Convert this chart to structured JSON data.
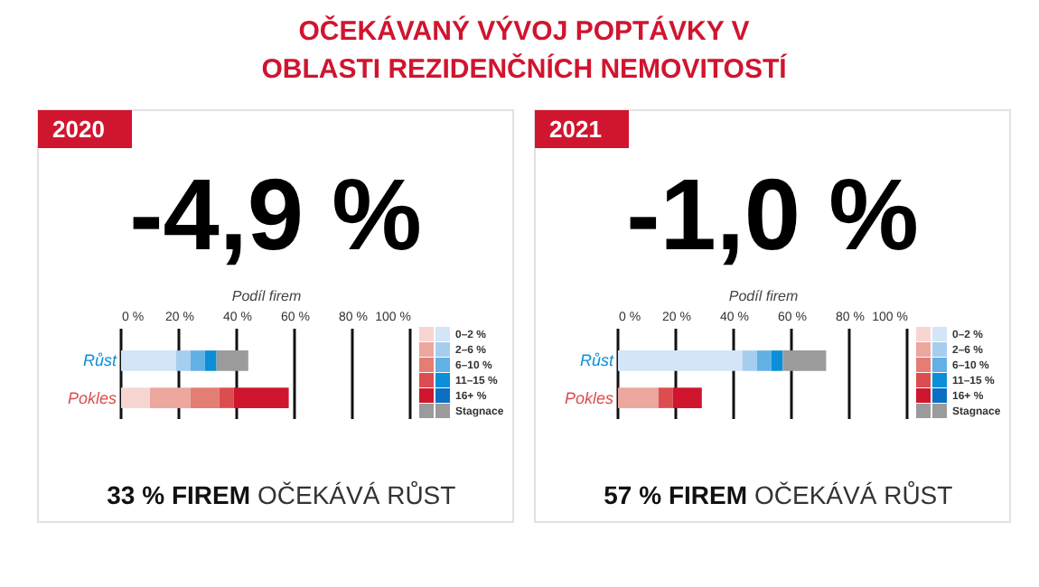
{
  "chart_data": [
    {
      "type": "bar",
      "orientation": "horizontal",
      "stacked": true,
      "title": "OČEKÁVANÝ VÝVOJ POPTÁVKY V OBLASTI REZIDENČNÍCH NEMOVITOSTÍ",
      "subtitle": "2020",
      "xlabel": "Podíl firem",
      "categories": [
        "Růst",
        "Pokles"
      ],
      "series": [
        {
          "name": "0–2 %",
          "colors": [
            "#d3e5f6",
            "#f7d6d2"
          ],
          "values": [
            19,
            10
          ]
        },
        {
          "name": "2–6 %",
          "colors": [
            "#a7cdee",
            "#eca79f"
          ],
          "values": [
            5,
            14
          ]
        },
        {
          "name": "6–10 %",
          "colors": [
            "#62b0e4",
            "#e47d73"
          ],
          "values": [
            5,
            10
          ]
        },
        {
          "name": "11–15 %",
          "colors": [
            "#0a8fd8",
            "#dc4d4f"
          ],
          "values": [
            4,
            5
          ]
        },
        {
          "name": "16+ %",
          "colors": [
            "#0b70c2",
            "#d0152f"
          ],
          "values": [
            null,
            19
          ]
        },
        {
          "name": "Stagnace",
          "colors": [
            "#9b9b9b",
            "#9b9b9b"
          ],
          "values": [
            11,
            null
          ]
        }
      ],
      "xlim": [
        0,
        100
      ],
      "xticks": [
        {
          "value": 0,
          "label": "0 %"
        },
        {
          "value": 20,
          "label": "20 %"
        },
        {
          "value": 40,
          "label": "40 %"
        },
        {
          "value": 60,
          "label": "60 %"
        },
        {
          "value": 80,
          "label": "80 %"
        },
        {
          "value": 100,
          "label": "100 %"
        }
      ],
      "grid": "x",
      "legend": "top right",
      "annotations": [
        "-4,9 %",
        "33 % FIREM",
        "OČEKÁVÁ RŮST"
      ]
    },
    {
      "type": "bar",
      "orientation": "horizontal",
      "stacked": true,
      "subtitle": "2021",
      "xlabel": "Podíl firem",
      "categories": [
        "Růst",
        "Pokles"
      ],
      "series": [
        {
          "name": "0–2 %",
          "colors": [
            "#d3e5f6",
            "#f7d6d2"
          ],
          "values": [
            43,
            null
          ]
        },
        {
          "name": "2–6 %",
          "colors": [
            "#a7cdee",
            "#eca79f"
          ],
          "values": [
            5,
            14
          ]
        },
        {
          "name": "6–10 %",
          "colors": [
            "#62b0e4",
            "#e47d73"
          ],
          "values": [
            5,
            null
          ]
        },
        {
          "name": "11–15 %",
          "colors": [
            "#0a8fd8",
            "#dc4d4f"
          ],
          "values": [
            4,
            5
          ]
        },
        {
          "name": "16+ %",
          "colors": [
            "#0b70c2",
            "#d0152f"
          ],
          "values": [
            null,
            10
          ]
        },
        {
          "name": "Stagnace",
          "colors": [
            "#9b9b9b",
            "#9b9b9b"
          ],
          "values": [
            15,
            null
          ]
        }
      ],
      "xlim": [
        0,
        100
      ],
      "xticks": [
        {
          "value": 0,
          "label": "0 %"
        },
        {
          "value": 20,
          "label": "20 %"
        },
        {
          "value": 40,
          "label": "40 %"
        },
        {
          "value": 60,
          "label": "60 %"
        },
        {
          "value": 80,
          "label": "80 %"
        },
        {
          "value": 100,
          "label": "100 %"
        }
      ],
      "grid": "x",
      "legend": "top right",
      "annotations": [
        "-1,0 %",
        "57 % FIREM",
        "OČEKÁVÁ RŮST"
      ]
    }
  ]
}
